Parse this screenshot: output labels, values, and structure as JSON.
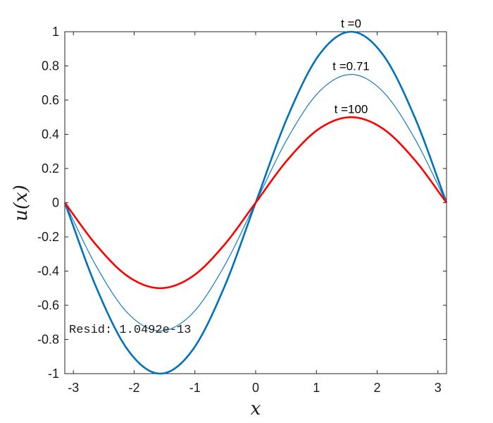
{
  "chart_data": {
    "type": "line",
    "xlabel": "x",
    "ylabel": "u(x)",
    "xlim": [
      -3.1416,
      3.1416
    ],
    "ylim": [
      -1,
      1
    ],
    "xticks": [
      -3,
      -2,
      -1,
      0,
      1,
      2,
      3
    ],
    "xtick_labels": [
      "-3",
      "-2",
      "-1",
      "0",
      "1",
      "2",
      "3"
    ],
    "yticks": [
      -1,
      -0.8,
      -0.6,
      -0.4,
      -0.2,
      0,
      0.2,
      0.4,
      0.6,
      0.8,
      1
    ],
    "ytick_labels": [
      "-1",
      "-0.8",
      "-0.6",
      "-0.4",
      "-0.2",
      "0",
      "0.2",
      "0.4",
      "0.6",
      "0.8",
      "1"
    ],
    "grid": false,
    "x": [
      -3.1416,
      -2.618,
      -2.0944,
      -1.5708,
      -1.0472,
      -0.5236,
      0,
      0.5236,
      1.0472,
      1.5708,
      2.0944,
      2.618,
      3.1416
    ],
    "series": [
      {
        "values": [
          0,
          -0.5,
          -0.866,
          -1,
          -0.866,
          -0.5,
          0,
          0.5,
          0.866,
          1,
          0.866,
          0.5,
          0
        ],
        "color": "#0072BD",
        "style": "thick"
      },
      {
        "values": [
          0,
          -0.375,
          -0.65,
          -0.75,
          -0.65,
          -0.375,
          0,
          0.375,
          0.65,
          0.75,
          0.65,
          0.375,
          0
        ],
        "color": "#0072BD",
        "style": "thin"
      },
      {
        "values": [
          0,
          -0.25,
          -0.433,
          -0.5,
          -0.433,
          -0.25,
          0,
          0.25,
          0.433,
          0.5,
          0.433,
          0.25,
          0
        ],
        "color": "#FF0000",
        "style": "thick"
      }
    ],
    "annotations": [
      {
        "text": "t =0",
        "x": 1.5708,
        "y": 1.0
      },
      {
        "text": "t =0.71",
        "x": 1.5708,
        "y": 0.75
      },
      {
        "text": "t =100",
        "x": 1.5708,
        "y": 0.5
      }
    ],
    "resid_text": "Resid: 1.0492e-13"
  }
}
